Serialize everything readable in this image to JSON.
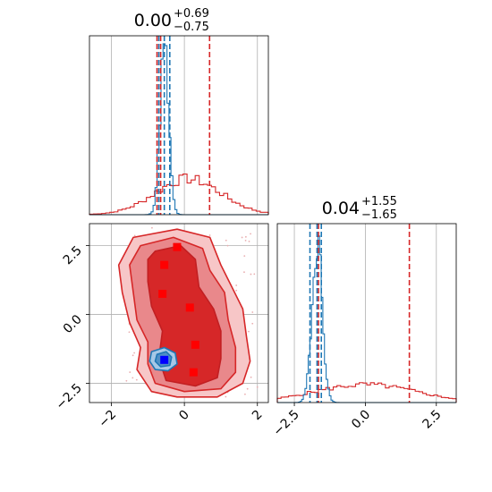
{
  "chart_data": [
    {
      "type": "histogram",
      "panel": "top-left marginal",
      "title": {
        "value": "0.00",
        "upper": "+0.69",
        "lower": "−0.75"
      },
      "xlim": [
        -2.6,
        2.3
      ],
      "grid": true,
      "reference_lines": [
        -0.75,
        0.0,
        0.69
      ],
      "series": [
        {
          "color": "#1f77b4",
          "center": -0.55,
          "spread": 0.12,
          "quantile_lines": [
            -0.7,
            -0.55,
            -0.4
          ]
        },
        {
          "color": "#d62728",
          "center": 0.1,
          "spread": 0.9,
          "quantile_lines": [
            -0.75,
            -0.65,
            0.69
          ]
        }
      ]
    },
    {
      "type": "contour",
      "panel": "bottom-left 2D",
      "xlim": [
        -2.6,
        2.3
      ],
      "ylim": [
        -3.2,
        3.3
      ],
      "xticks": [
        "−2",
        "0",
        "2"
      ],
      "yticks": [
        "2.5",
        "0.0",
        "−2.5"
      ],
      "grid": true,
      "markers": [
        {
          "x": -0.55,
          "y": -1.65,
          "color": "#0000ff"
        },
        {
          "x": -0.2,
          "y": 2.45,
          "color": "#ff0000"
        },
        {
          "x": -0.55,
          "y": 1.8,
          "color": "#ff0000"
        },
        {
          "x": -0.6,
          "y": 0.75,
          "color": "#ff0000"
        },
        {
          "x": 0.15,
          "y": 0.25,
          "color": "#ff0000"
        },
        {
          "x": 0.3,
          "y": -1.1,
          "color": "#ff0000"
        },
        {
          "x": 0.25,
          "y": -2.1,
          "color": "#ff0000"
        }
      ]
    },
    {
      "type": "histogram",
      "panel": "bottom-right marginal",
      "title": {
        "value": "0.04",
        "upper": "+1.55",
        "lower": "−1.65"
      },
      "xlim": [
        -3.1,
        3.2
      ],
      "xticks": [
        "−2.5",
        "0.0",
        "2.5"
      ],
      "grid": true,
      "series": [
        {
          "color": "#1f77b4",
          "center": -1.7,
          "spread": 0.18,
          "quantile_lines": [
            -1.95,
            -1.7,
            -1.55
          ]
        },
        {
          "color": "#d62728",
          "center": 0.0,
          "spread": 1.8,
          "quantile_lines": [
            -1.65,
            1.55
          ]
        }
      ]
    }
  ]
}
